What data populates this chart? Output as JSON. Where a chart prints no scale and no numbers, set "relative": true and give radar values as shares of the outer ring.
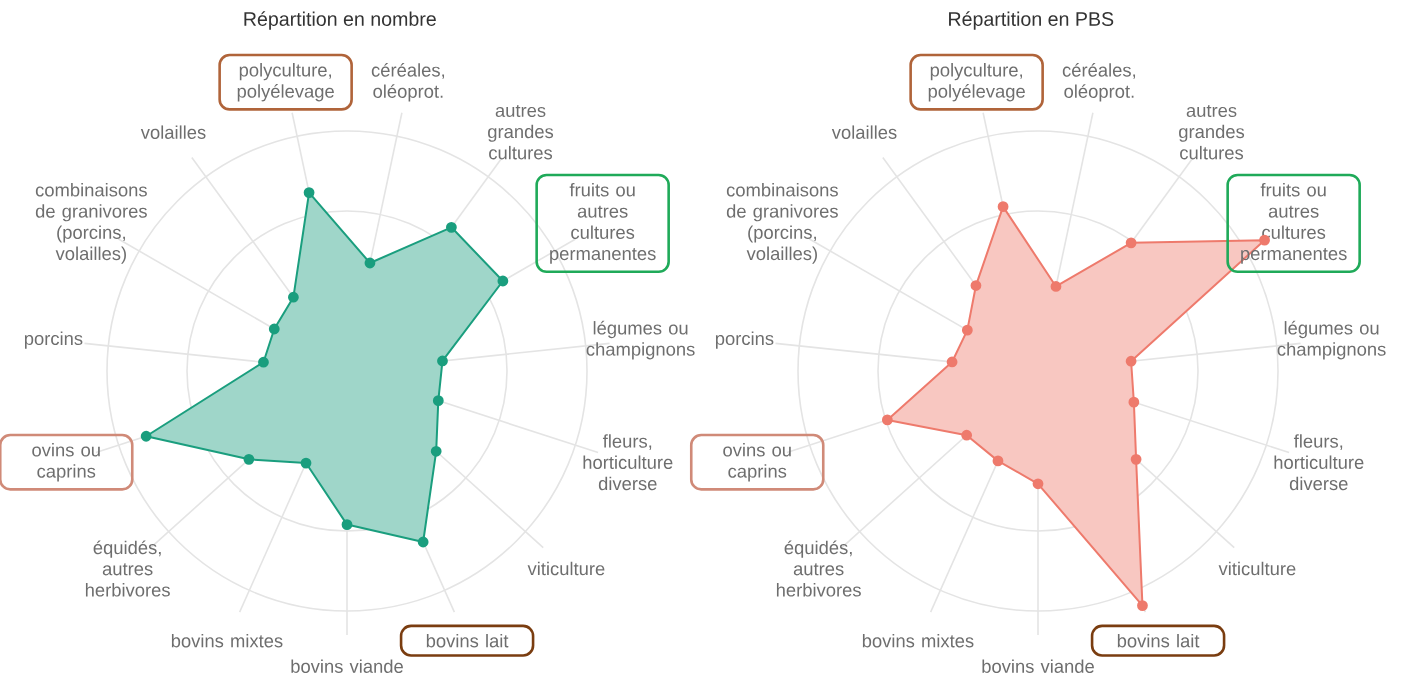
{
  "chart_data": [
    {
      "type": "radar",
      "title": "Répartition en nombre",
      "relative": true,
      "grid": true,
      "marker": "circle",
      "categories": [
        "céréales, oléoprot.",
        "autres grandes cultures",
        "fruits ou autres cultures permanentes",
        "légumes ou champignons",
        "fleurs, horticulture diverse",
        "viticulture",
        "bovins lait",
        "bovins viande",
        "bovins mixtes",
        "équidés, autres herbivores",
        "ovins ou caprins",
        "porcins",
        "combinaisons de granivores (porcins, volailles)",
        "volailles",
        "polyculture, polyélevage"
      ],
      "series": [
        {
          "color": "#1a9e7e",
          "values": [
            0.46,
            0.74,
            0.75,
            0.4,
            0.4,
            0.5,
            0.78,
            0.64,
            0.42,
            0.55,
            0.88,
            0.35,
            0.35,
            0.38,
            0.76
          ]
        }
      ]
    },
    {
      "type": "radar",
      "title": "Répartition en PBS",
      "relative": true,
      "grid": true,
      "marker": "circle",
      "categories": [
        "céréales, oléoprot.",
        "autres grandes cultures",
        "fruits ou autres cultures permanentes",
        "légumes ou champignons",
        "fleurs, horticulture diverse",
        "viticulture",
        "bovins lait",
        "bovins viande",
        "bovins mixtes",
        "équidés, autres herbivores",
        "ovins ou caprins",
        "porcins",
        "combinaisons de granivores (porcins, volailles)",
        "volailles",
        "polyculture, polyélevage"
      ],
      "series": [
        {
          "color": "#ee7a6c",
          "values": [
            0.36,
            0.66,
            1.09,
            0.39,
            0.42,
            0.55,
            1.07,
            0.47,
            0.41,
            0.4,
            0.66,
            0.36,
            0.34,
            0.44,
            0.7
          ]
        }
      ]
    }
  ]
}
